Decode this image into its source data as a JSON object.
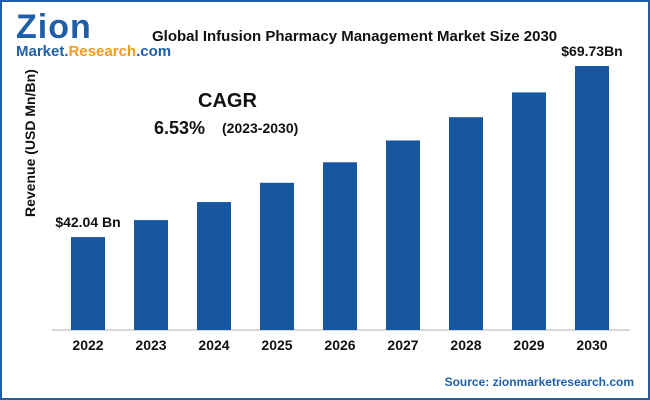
{
  "brand": {
    "top": "Zion",
    "bottom_main": "Market.",
    "bottom_accent": "Research",
    "bottom_tail": ".com"
  },
  "colors": {
    "bar": "#1757a0",
    "brand_blue": "#1f5fa8",
    "brand_orange": "#f29b1d"
  },
  "cagr": {
    "label": "CAGR",
    "value": "6.53%",
    "period": "(2023-2030)"
  },
  "source": {
    "label": "Source:",
    "text": "zionmarketresearch.com"
  },
  "chart_data": {
    "type": "bar",
    "title": "Global Infusion Pharmacy Management Market Size 2030",
    "xlabel": "",
    "ylabel": "Revenue (USD Mn/Bn)",
    "categories": [
      "2022",
      "2023",
      "2024",
      "2025",
      "2026",
      "2027",
      "2028",
      "2029",
      "2030"
    ],
    "values": [
      42.04,
      44.79,
      47.71,
      50.83,
      54.15,
      57.68,
      61.45,
      65.46,
      69.73
    ],
    "ylim": [
      27,
      72
    ],
    "grid": false,
    "data_labels": [
      {
        "index": 0,
        "text": "$42.04 Bn"
      },
      {
        "index": 8,
        "text": "$69.73Bn"
      }
    ]
  }
}
